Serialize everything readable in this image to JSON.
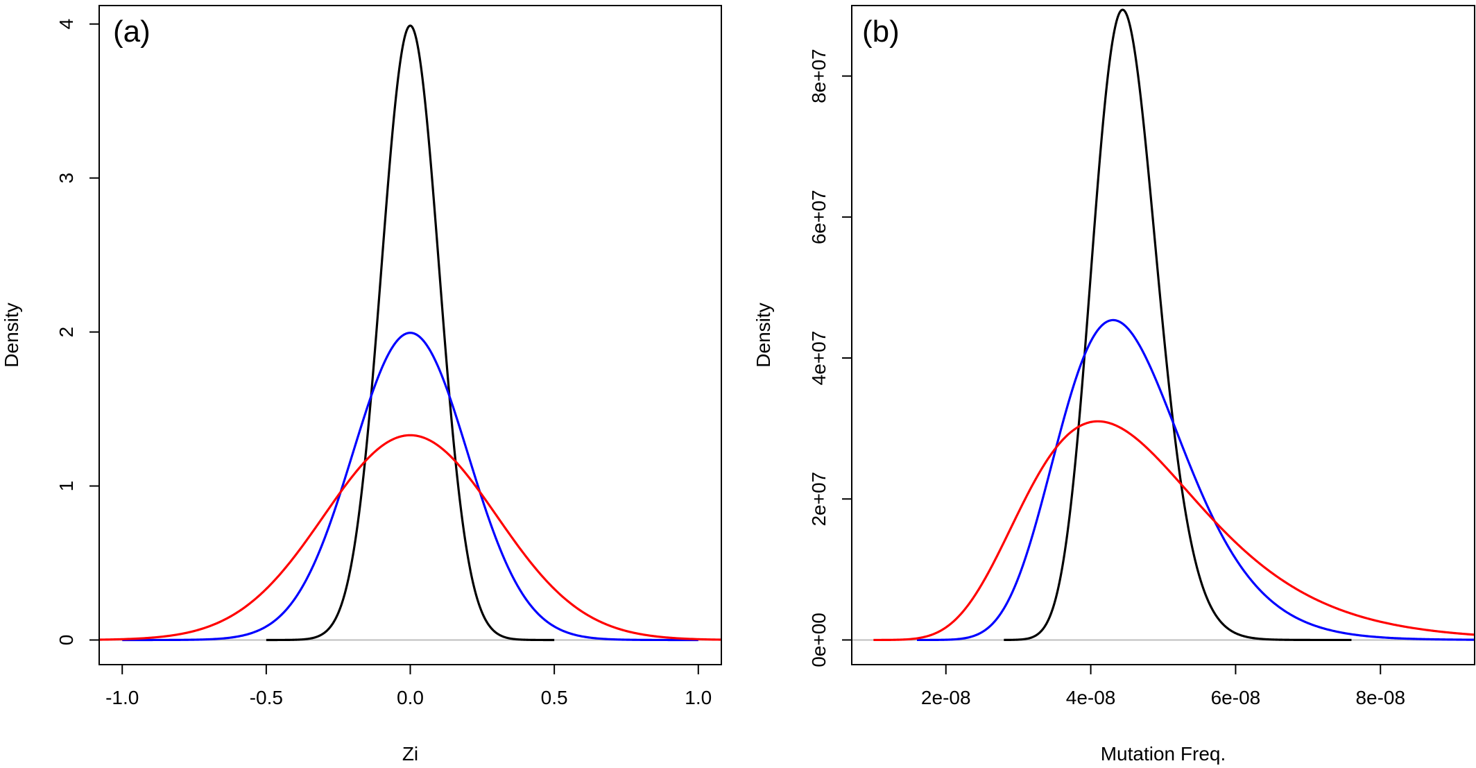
{
  "colors": {
    "black": "#000000",
    "blue": "#0000ff",
    "red": "#ff0000",
    "baseline": "#bebebe"
  },
  "chart_data": [
    {
      "type": "line",
      "panel_label": "(a)",
      "xlabel": "Zi",
      "ylabel": "Density",
      "xlim": [
        -1.08,
        1.08
      ],
      "ylim": [
        -0.16,
        4.12
      ],
      "xticks": [
        -1.0,
        -0.5,
        0.0,
        0.5,
        1.0
      ],
      "xtick_labels": [
        "-1.0",
        "-0.5",
        "0.0",
        "0.5",
        "1.0"
      ],
      "yticks": [
        0,
        1,
        2,
        3,
        4
      ],
      "ytick_labels": [
        "0",
        "1",
        "2",
        "3",
        "4"
      ],
      "baseline": 0,
      "series": [
        {
          "color": "#000000",
          "distribution": "normal",
          "mean": 0.0,
          "sd": 0.1,
          "range": [
            -0.5,
            0.5
          ]
        },
        {
          "color": "#0000ff",
          "distribution": "normal",
          "mean": 0.0,
          "sd": 0.2,
          "range": [
            -1.0,
            1.0
          ]
        },
        {
          "color": "#ff0000",
          "distribution": "normal",
          "mean": 0.0,
          "sd": 0.3,
          "range": [
            -1.5,
            1.5
          ]
        }
      ]
    },
    {
      "type": "line",
      "panel_label": "(b)",
      "xlabel": "Mutation Freq.",
      "ylabel": "Density",
      "xlim": [
        7e-09,
        9.3e-08
      ],
      "ylim": [
        -3500000.0,
        90000000.0
      ],
      "xticks": [
        2e-08,
        4e-08,
        6e-08,
        8e-08
      ],
      "xtick_labels": [
        "2e-08",
        "4e-08",
        "6e-08",
        "8e-08"
      ],
      "yticks": [
        0,
        20000000.0,
        40000000.0,
        60000000.0,
        80000000.0
      ],
      "ytick_labels": [
        "0e+00",
        "2e+07",
        "4e+07",
        "6e+07",
        "8e+07"
      ],
      "baseline": 0,
      "series": [
        {
          "color": "#000000",
          "distribution": "lognormal",
          "mu": -16.92,
          "sigma": 0.1,
          "range": [
            2.8e-08,
            7.6e-08
          ]
        },
        {
          "color": "#0000ff",
          "distribution": "lognormal",
          "mu": -16.92,
          "sigma": 0.2,
          "range": [
            1.6e-08,
            9.3e-08
          ]
        },
        {
          "color": "#ff0000",
          "distribution": "lognormal",
          "mu": -16.92,
          "sigma": 0.3,
          "range": [
            1e-08,
            9.3e-08
          ]
        }
      ]
    }
  ]
}
